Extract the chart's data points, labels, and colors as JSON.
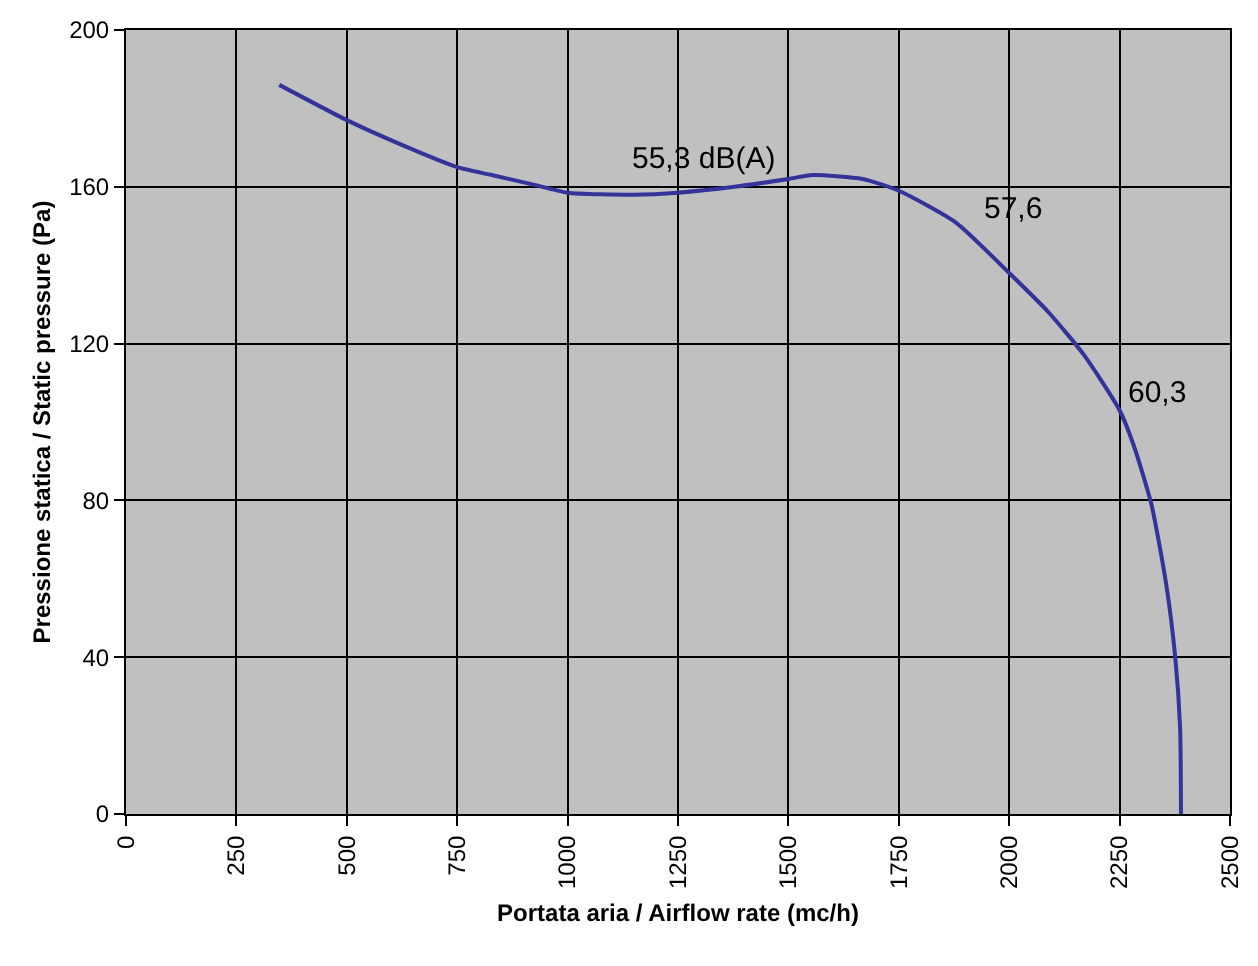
{
  "chart_data": {
    "type": "line",
    "xlabel": "Portata aria / Airflow rate (mc/h)",
    "ylabel": "Pressione statica / Static pressure (Pa)",
    "x": [
      347,
      500,
      618,
      750,
      828,
      925,
      1000,
      1150,
      1250,
      1378,
      1500,
      1555,
      1668,
      1750,
      1878,
      2000,
      2089,
      2170,
      2250,
      2282,
      2322,
      2355,
      2376,
      2387,
      2389
    ],
    "series": [
      {
        "color": "#333399",
        "values": [
          186,
          177,
          171,
          165,
          163,
          160.5,
          158.5,
          158,
          158.5,
          160,
          162,
          163,
          162,
          159,
          151,
          138,
          128,
          117,
          103,
          94,
          79,
          59,
          40,
          22,
          0
        ]
      }
    ],
    "xlim": [
      0,
      2500
    ],
    "xticks": [
      0,
      250,
      500,
      750,
      1000,
      1250,
      1500,
      1750,
      2000,
      2250,
      2500
    ],
    "ylim": [
      0,
      200
    ],
    "yticks": [
      0,
      40,
      80,
      120,
      160,
      200
    ],
    "grid": true,
    "marker": "none",
    "line_style": "solid",
    "annotations": [
      {
        "text": "55,3 dB(A)",
        "x": 1378,
        "y": 160
      },
      {
        "text": "57,6",
        "x": 1878,
        "y": 151
      },
      {
        "text": "60,3",
        "x": 2250,
        "y": 103
      }
    ]
  }
}
